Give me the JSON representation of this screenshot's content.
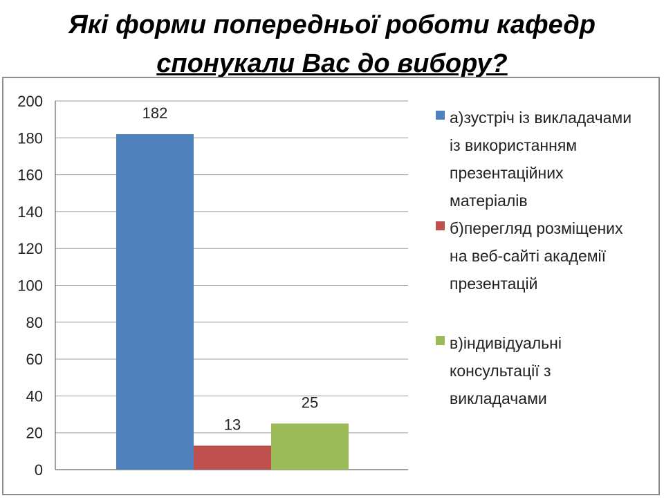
{
  "title": {
    "line1": "Які форми попередньої роботи кафедр",
    "line2": "спонукали Вас до вибору?"
  },
  "chart_data": {
    "type": "bar",
    "categories": [
      "а)",
      "б)",
      "в)"
    ],
    "values": [
      182,
      13,
      25
    ],
    "data_labels": [
      "182",
      "13",
      "25"
    ],
    "ylim": [
      0,
      200
    ],
    "yticks": [
      0,
      20,
      40,
      60,
      80,
      100,
      120,
      140,
      160,
      180,
      200
    ],
    "grid": true,
    "legend_position": "right",
    "series": [
      {
        "name": "а)зустріч із викладачами із використанням презентаційних матеріалів",
        "legend_lines": [
          "а)зустріч із викладачами",
          "із використанням",
          "презентаційних",
          "матеріалів"
        ],
        "value": 182,
        "color": "#4f81bd"
      },
      {
        "name": "б)перегляд розміщених на веб-сайті академії презентацій",
        "legend_lines": [
          "б)перегляд розміщених",
          "на веб-сайті академії",
          "презентацій"
        ],
        "value": 13,
        "color": "#c0504d"
      },
      {
        "name": "в)індивідуальні консультації з викладачами",
        "legend_lines": [
          "в)індивідуальні",
          "консультації з",
          "викладачами"
        ],
        "value": 25,
        "color": "#9bbb59"
      }
    ]
  }
}
